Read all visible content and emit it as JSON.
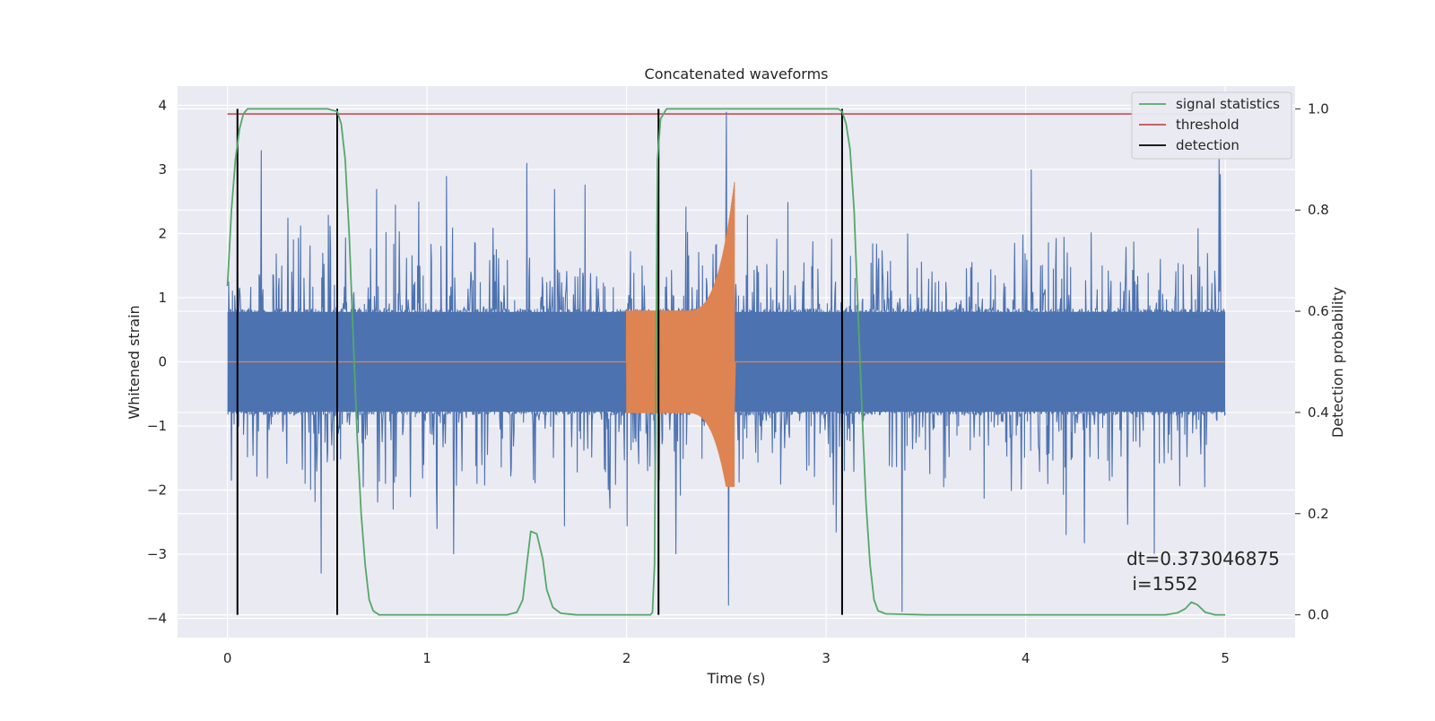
{
  "chart_data": {
    "type": "line",
    "title": "Concatenated waveforms",
    "xlabel": "Time (s)",
    "ylabel": "Whitened strain",
    "ylabel_right": "Detection probability",
    "xlim": [
      -0.25,
      5.35
    ],
    "ylim": [
      -4.3,
      4.3
    ],
    "ylim_right": [
      -0.045,
      1.045
    ],
    "xticks": [
      0,
      1,
      2,
      3,
      4,
      5
    ],
    "xtick_labels": [
      "0",
      "1",
      "2",
      "3",
      "4",
      "5"
    ],
    "yticks": [
      -4,
      -3,
      -2,
      -1,
      0,
      1,
      2,
      3,
      4
    ],
    "ytick_labels": [
      "−4",
      "−3",
      "−2",
      "−1",
      "0",
      "1",
      "2",
      "3",
      "4"
    ],
    "yticks_right": [
      0.0,
      0.2,
      0.4,
      0.6,
      0.8,
      1.0
    ],
    "ytick_labels_right": [
      "0.0",
      "0.2",
      "0.4",
      "0.6",
      "0.8",
      "1.0"
    ],
    "grid": true,
    "legend_position": "top-right",
    "series": [
      {
        "kind": "strain-noise",
        "axis": "left",
        "color": "#4c72b0",
        "x_range": [
          0,
          5
        ],
        "core_amplitude": 0.78,
        "notable_peaks": [
          {
            "x": 0.05,
            "y": 3.2
          },
          {
            "x": 0.17,
            "y": 3.3
          },
          {
            "x": 1.5,
            "y": 3.1
          },
          {
            "x": 2.5,
            "y": 3.9
          },
          {
            "x": 2.51,
            "y": -3.8
          },
          {
            "x": 3.38,
            "y": -3.9
          },
          {
            "x": 4.97,
            "y": 3.3
          },
          {
            "x": 0.47,
            "y": -3.3
          }
        ]
      },
      {
        "kind": "injected-chirp",
        "axis": "left",
        "color": "#dd8452",
        "x_range": [
          2.0,
          2.54
        ],
        "start_amplitude": 0.8,
        "peak": {
          "x": 2.54,
          "y": 2.8
        },
        "trough": {
          "x": 2.53,
          "y": -1.95
        }
      },
      {
        "name": "signal statistics",
        "axis": "right",
        "color": "#55a868",
        "points": [
          [
            0.0,
            0.65
          ],
          [
            0.02,
            0.8
          ],
          [
            0.04,
            0.9
          ],
          [
            0.06,
            0.96
          ],
          [
            0.08,
            0.99
          ],
          [
            0.1,
            1.0
          ],
          [
            0.5,
            1.0
          ],
          [
            0.55,
            0.995
          ],
          [
            0.57,
            0.97
          ],
          [
            0.59,
            0.9
          ],
          [
            0.61,
            0.75
          ],
          [
            0.63,
            0.55
          ],
          [
            0.65,
            0.35
          ],
          [
            0.67,
            0.2
          ],
          [
            0.69,
            0.1
          ],
          [
            0.71,
            0.03
          ],
          [
            0.73,
            0.008
          ],
          [
            0.76,
            0.0
          ],
          [
            1.4,
            0.0
          ],
          [
            1.45,
            0.005
          ],
          [
            1.48,
            0.03
          ],
          [
            1.5,
            0.1
          ],
          [
            1.52,
            0.165
          ],
          [
            1.55,
            0.16
          ],
          [
            1.58,
            0.11
          ],
          [
            1.6,
            0.05
          ],
          [
            1.63,
            0.015
          ],
          [
            1.67,
            0.003
          ],
          [
            1.75,
            0.0
          ],
          [
            2.12,
            0.0
          ],
          [
            2.13,
            0.005
          ],
          [
            2.14,
            0.1
          ],
          [
            2.155,
            0.9
          ],
          [
            2.17,
            0.98
          ],
          [
            2.2,
            1.0
          ],
          [
            3.06,
            1.0
          ],
          [
            3.08,
            0.995
          ],
          [
            3.1,
            0.97
          ],
          [
            3.12,
            0.92
          ],
          [
            3.14,
            0.8
          ],
          [
            3.16,
            0.6
          ],
          [
            3.18,
            0.4
          ],
          [
            3.2,
            0.22
          ],
          [
            3.22,
            0.1
          ],
          [
            3.24,
            0.03
          ],
          [
            3.26,
            0.008
          ],
          [
            3.3,
            0.002
          ],
          [
            3.5,
            0.0
          ],
          [
            4.7,
            0.0
          ],
          [
            4.76,
            0.004
          ],
          [
            4.8,
            0.012
          ],
          [
            4.83,
            0.025
          ],
          [
            4.86,
            0.02
          ],
          [
            4.9,
            0.005
          ],
          [
            4.95,
            0.0
          ],
          [
            5.0,
            0.0
          ]
        ]
      },
      {
        "name": "threshold",
        "axis": "right",
        "color": "#c44e52",
        "x": [
          0,
          5
        ],
        "value": 0.99
      },
      {
        "name": "detection",
        "axis": "right",
        "color": "#000000",
        "x_positions": [
          0.05,
          0.55,
          2.16,
          3.08
        ],
        "y_range": [
          0.0,
          1.0
        ]
      }
    ],
    "annotations": [
      {
        "text": "dt=0.373046875",
        "x": 4.5,
        "y": -3.02
      },
      {
        "text": " i=1552",
        "x": 4.5,
        "y": -3.4
      }
    ]
  }
}
